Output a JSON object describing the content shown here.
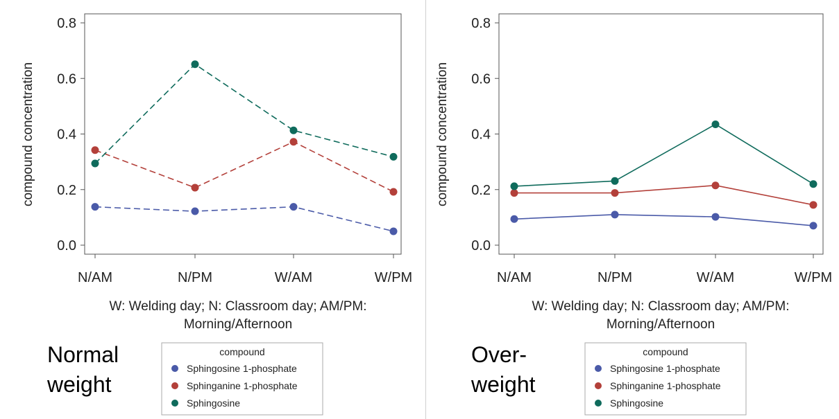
{
  "chart_data": [
    {
      "type": "line",
      "panel_label": [
        "Normal",
        "weight"
      ],
      "categories": [
        "N/AM",
        "N/PM",
        "W/AM",
        "W/PM"
      ],
      "xlabel": [
        "W: Welding day; N: Classroom day; AM/PM:",
        "Morning/Afternoon"
      ],
      "ylabel": "compound concentration",
      "ylim": [
        0.0,
        0.8
      ],
      "yticks": [
        "0.0",
        "0.2",
        "0.4",
        "0.6",
        "0.8"
      ],
      "line_style": "dashed",
      "legend_title": "compound",
      "series": [
        {
          "name": "Sphingosine 1-phosphate",
          "color": "#4a5aa8",
          "values": [
            0.138,
            0.122,
            0.138,
            0.05
          ]
        },
        {
          "name": "Sphinganine 1-phosphate",
          "color": "#b3403a",
          "values": [
            0.342,
            0.207,
            0.372,
            0.192
          ]
        },
        {
          "name": "Sphingosine",
          "color": "#0f6b5c",
          "values": [
            0.294,
            0.651,
            0.413,
            0.318
          ]
        }
      ]
    },
    {
      "type": "line",
      "panel_label": [
        "Over-",
        "weight"
      ],
      "categories": [
        "N/AM",
        "N/PM",
        "W/AM",
        "W/PM"
      ],
      "xlabel": [
        "W: Welding day; N: Classroom day; AM/PM:",
        "Morning/Afternoon"
      ],
      "ylabel": "compound concentration",
      "ylim": [
        0.0,
        0.8
      ],
      "yticks": [
        "0.0",
        "0.2",
        "0.4",
        "0.6",
        "0.8"
      ],
      "line_style": "solid",
      "legend_title": "compound",
      "series": [
        {
          "name": "Sphingosine 1-phosphate",
          "color": "#4a5aa8",
          "values": [
            0.094,
            0.11,
            0.102,
            0.07
          ]
        },
        {
          "name": "Sphinganine 1-phosphate",
          "color": "#b3403a",
          "values": [
            0.188,
            0.188,
            0.215,
            0.145
          ]
        },
        {
          "name": "Sphingosine",
          "color": "#0f6b5c",
          "values": [
            0.212,
            0.231,
            0.435,
            0.22
          ]
        }
      ]
    }
  ]
}
